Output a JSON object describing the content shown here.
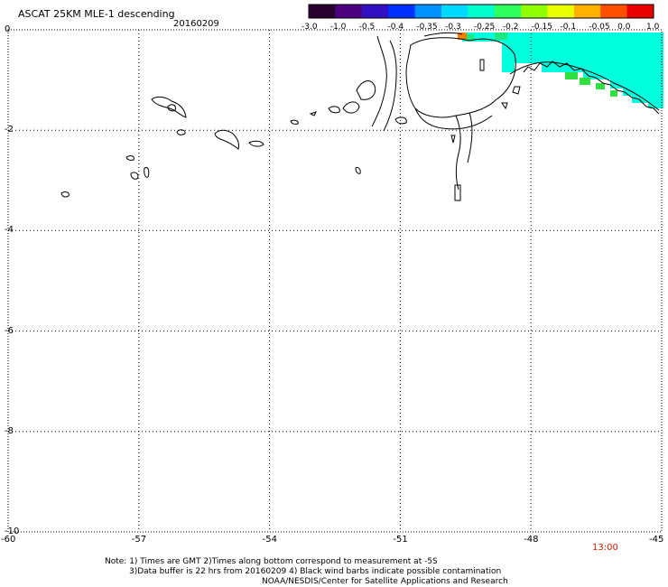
{
  "header": {
    "title": "ASCAT 25KM MLE-1 descending",
    "date": "20160209"
  },
  "colorbar": {
    "labels": [
      "-3.0",
      "-1.0",
      "-0.5",
      "-0.4",
      "-0.35",
      "-0.3",
      "-0.25",
      "-0.2",
      "-0.15",
      "-0.1",
      "-0.05",
      "0.0",
      "1.0"
    ],
    "colors": [
      "#2a0030",
      "#4a0080",
      "#3010c0",
      "#0030ff",
      "#0090ff",
      "#00d8ff",
      "#00ffcc",
      "#30ff60",
      "#90ff00",
      "#e8ff00",
      "#ffb000",
      "#ff5000",
      "#e80000"
    ]
  },
  "axes": {
    "lat_labels": [
      "0",
      "-2",
      "-4",
      "-6",
      "-8",
      "-10"
    ],
    "lon_labels": [
      "-60",
      "-57",
      "-54",
      "-51",
      "-48",
      "-45"
    ]
  },
  "time_label": "13:00",
  "notes": {
    "line1": "Note: 1) Times are GMT 2)Times along bottom correspond to measurement at -5S",
    "line2": "3)Data buffer is 22 hrs from 20160209 4) Black wind barbs indicate possible contamination",
    "line3": "NOAA/NESDIS/Center for Satellite Applications and Research"
  }
}
